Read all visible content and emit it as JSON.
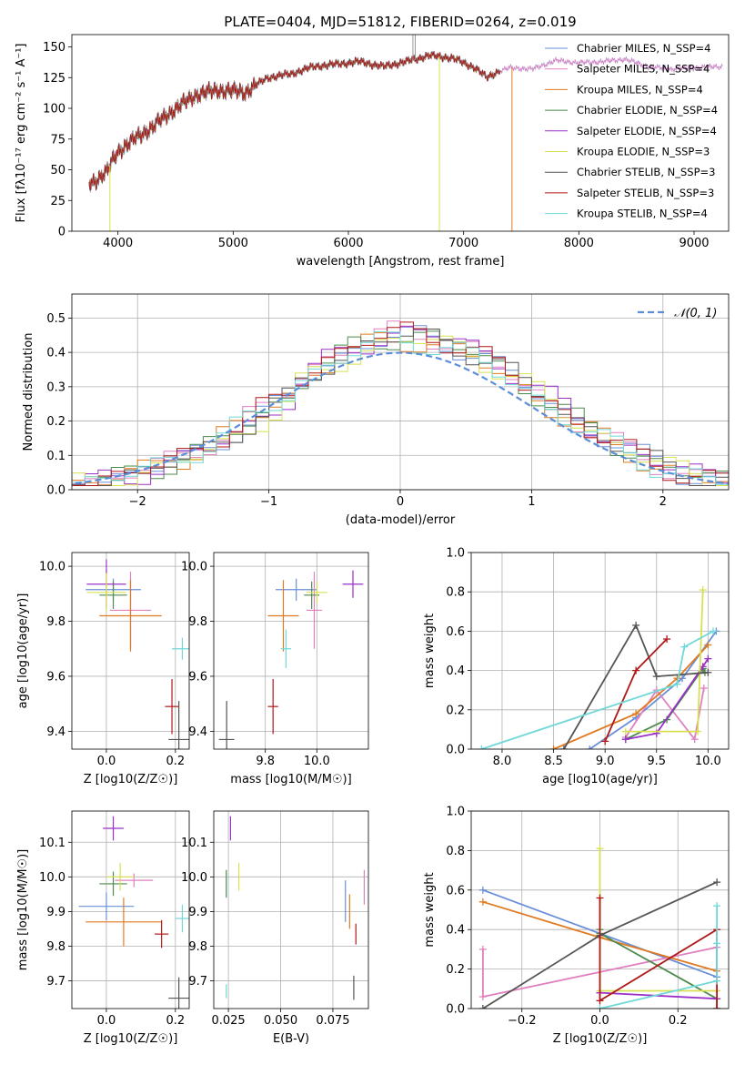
{
  "figure": {
    "title": "PLATE=0404, MJD=51812, FIBERID=0264, z=0.019"
  },
  "colors": {
    "Chabrier MILES": "#6a8fd8",
    "Salpeter MILES": "#e080c0",
    "Kroupa MILES": "#e07a20",
    "Chabrier ELODIE": "#4d8a4d",
    "Salpeter ELODIE": "#9b30c8",
    "Kroupa ELODIE": "#d8e050",
    "Chabrier STELIB": "#555555",
    "Salpeter STELIB": "#b01818",
    "Kroupa STELIB": "#70d8d8"
  },
  "chart_data": [
    {
      "id": "spectrum",
      "type": "line",
      "title": "PLATE=0404, MJD=51812, FIBERID=0264, z=0.019",
      "xlabel": "wavelength [Angstrom, rest frame]",
      "ylabel": "Flux [fλ10⁻¹⁷ erg cm⁻² s⁻¹ A⁻¹]",
      "xlim": [
        3600,
        9300
      ],
      "ylim": [
        0,
        160
      ],
      "xticks": [
        4000,
        5000,
        6000,
        7000,
        8000,
        9000
      ],
      "yticks": [
        0,
        25,
        50,
        75,
        100,
        125,
        150
      ],
      "legend_placement": "top-right",
      "legend": [
        "Chabrier MILES, N_SSP=4",
        "Salpeter MILES, N_SSP=4",
        "Kroupa MILES, N_SSP=4",
        "Chabrier ELODIE, N_SSP=4",
        "Salpeter ELODIE, N_SSP=4",
        "Kroupa ELODIE, N_SSP=3",
        "Chabrier STELIB, N_SSP=3",
        "Salpeter STELIB, N_SSP=3",
        "Kroupa STELIB, N_SSP=4"
      ],
      "continuum": {
        "x": [
          3750,
          3900,
          4000,
          4100,
          4300,
          4500,
          4700,
          4900,
          5100,
          5300,
          5500,
          5700,
          5900,
          6100,
          6300,
          6500,
          6700,
          6900,
          7100,
          7200,
          7300,
          7400,
          7600,
          7800,
          8000,
          8200,
          8400,
          8600,
          8800,
          9000,
          9200
        ],
        "y": [
          38,
          48,
          65,
          72,
          85,
          100,
          112,
          115,
          113,
          125,
          128,
          134,
          136,
          138,
          134,
          138,
          143,
          141,
          133,
          125,
          130,
          133,
          132,
          139,
          137,
          138,
          140,
          134,
          132,
          133,
          134
        ]
      },
      "dips": [
        {
          "x": 3930,
          "y": 0,
          "series": "Kroupa ELODIE"
        },
        {
          "x": 6790,
          "y": 0,
          "series": "Kroupa ELODIE"
        },
        {
          "x": 7420,
          "y": 0,
          "series": "Kroupa MILES"
        }
      ],
      "spike": {
        "x": 6560,
        "y": 160
      }
    },
    {
      "id": "residuals",
      "type": "histogram",
      "xlabel": "(data-model)/error",
      "ylabel": "Normed distribution",
      "xlim": [
        -2.5,
        2.5
      ],
      "ylim": [
        0,
        0.57
      ],
      "xticks": [
        -2,
        -1,
        0,
        1,
        2
      ],
      "yticks": [
        0,
        0.1,
        0.2,
        0.3,
        0.4,
        0.5
      ],
      "grid": true,
      "legend_placement": "top-right",
      "legend": [
        "𝒩(0, 1)"
      ],
      "reference_curve": "normal pdf, mean 0, sigma 1",
      "bin_width": 0.1
    },
    {
      "id": "age_vs_Z",
      "type": "scatter",
      "xlabel": "Z [log10(Z/Z☉)]",
      "ylabel": "age  [log10(age/yr)]",
      "xlim": [
        -0.1,
        0.24
      ],
      "ylim": [
        9.335,
        10.05
      ],
      "xticks": [
        0.0,
        0.2
      ],
      "yticks": [
        9.4,
        9.6,
        9.8,
        10.0
      ],
      "grid": true,
      "points": [
        {
          "series": "Chabrier MILES",
          "x": 0.02,
          "y": 9.915,
          "xerr": 0.08,
          "yerr": 0.04
        },
        {
          "series": "Salpeter MILES",
          "x": 0.07,
          "y": 9.84,
          "xerr": 0.06,
          "yerr": 0.14
        },
        {
          "series": "Kroupa MILES",
          "x": 0.07,
          "y": 9.82,
          "xerr": 0.09,
          "yerr": 0.13
        },
        {
          "series": "Chabrier ELODIE",
          "x": 0.02,
          "y": 9.895,
          "xerr": 0.04,
          "yerr": 0.05
        },
        {
          "series": "Salpeter ELODIE",
          "x": 0.0,
          "y": 9.935,
          "xerr": 0.057,
          "yerr": 0.09
        },
        {
          "series": "Kroupa ELODIE",
          "x": 0.0,
          "y": 9.905,
          "xerr": 0.057,
          "yerr": 0.07
        },
        {
          "series": "Chabrier STELIB",
          "x": 0.21,
          "y": 9.37,
          "xerr": 0.03,
          "yerr": 0.14
        },
        {
          "series": "Salpeter STELIB",
          "x": 0.19,
          "y": 9.49,
          "xerr": 0.02,
          "yerr": 0.1
        },
        {
          "series": "Kroupa STELIB",
          "x": 0.22,
          "y": 9.7,
          "xerr": 0.03,
          "yerr": 0.04
        }
      ]
    },
    {
      "id": "age_vs_mass",
      "type": "scatter",
      "xlabel": "mass [log10(M/M☉)]",
      "ylabel": "",
      "xlim": [
        9.6,
        10.2
      ],
      "ylim": [
        9.335,
        10.05
      ],
      "xticks": [
        9.8,
        10.0
      ],
      "yticks": [
        9.4,
        9.6,
        9.8,
        10.0
      ],
      "grid": true,
      "points": [
        {
          "series": "Chabrier MILES",
          "x": 9.92,
          "y": 9.915,
          "xerr": 0.08,
          "yerr": 0.04
        },
        {
          "series": "Salpeter MILES",
          "x": 9.99,
          "y": 9.84,
          "xerr": 0.03,
          "yerr": 0.14
        },
        {
          "series": "Kroupa MILES",
          "x": 9.87,
          "y": 9.82,
          "xerr": 0.06,
          "yerr": 0.13
        },
        {
          "series": "Chabrier ELODIE",
          "x": 9.98,
          "y": 9.895,
          "xerr": 0.03,
          "yerr": 0.05
        },
        {
          "series": "Salpeter ELODIE",
          "x": 10.14,
          "y": 9.935,
          "xerr": 0.04,
          "yerr": 0.05
        },
        {
          "series": "Kroupa ELODIE",
          "x": 10.0,
          "y": 9.905,
          "xerr": 0.04,
          "yerr": 0.04
        },
        {
          "series": "Chabrier STELIB",
          "x": 9.65,
          "y": 9.37,
          "xerr": 0.03,
          "yerr": 0.14
        },
        {
          "series": "Salpeter STELIB",
          "x": 9.83,
          "y": 9.49,
          "xerr": 0.02,
          "yerr": 0.1
        },
        {
          "series": "Kroupa STELIB",
          "x": 9.88,
          "y": 9.7,
          "xerr": 0.02,
          "yerr": 0.07
        }
      ]
    },
    {
      "id": "mass_weight_vs_age",
      "type": "line",
      "xlabel": "age  [log10(age/yr)]",
      "ylabel": "mass weight",
      "xlim": [
        7.7,
        10.2
      ],
      "ylim": [
        0,
        1.0
      ],
      "xticks": [
        8.0,
        8.5,
        9.0,
        9.5,
        10.0
      ],
      "yticks": [
        0.0,
        0.2,
        0.4,
        0.6,
        0.8,
        1.0
      ],
      "grid": true,
      "series": [
        {
          "name": "Chabrier MILES",
          "x": [
            8.85,
            9.3,
            9.75,
            10.08
          ],
          "y": [
            0.0,
            0.16,
            0.36,
            0.6
          ]
        },
        {
          "name": "Salpeter MILES",
          "x": [
            9.2,
            9.5,
            9.87,
            9.96
          ],
          "y": [
            0.06,
            0.3,
            0.05,
            0.31
          ]
        },
        {
          "name": "Kroupa MILES",
          "x": [
            8.5,
            9.3,
            9.7,
            10.0
          ],
          "y": [
            0.0,
            0.18,
            0.36,
            0.53
          ]
        },
        {
          "name": "Chabrier ELODIE",
          "x": [
            9.2,
            9.6,
            9.95,
            9.97
          ],
          "y": [
            0.05,
            0.15,
            0.41,
            0.39
          ]
        },
        {
          "name": "Salpeter ELODIE",
          "x": [
            9.2,
            9.5,
            9.95,
            10.0
          ],
          "y": [
            0.05,
            0.08,
            0.42,
            0.46
          ]
        },
        {
          "name": "Kroupa ELODIE",
          "x": [
            9.2,
            9.9,
            9.95
          ],
          "y": [
            0.09,
            0.09,
            0.81
          ]
        },
        {
          "name": "Chabrier STELIB",
          "x": [
            8.6,
            9.3,
            9.5,
            10.0
          ],
          "y": [
            0.0,
            0.63,
            0.37,
            0.39
          ]
        },
        {
          "name": "Salpeter STELIB",
          "x": [
            9.0,
            9.3,
            9.6
          ],
          "y": [
            0.04,
            0.4,
            0.56
          ]
        },
        {
          "name": "Kroupa STELIB",
          "x": [
            7.8,
            9.7,
            9.77,
            10.05
          ],
          "y": [
            0.0,
            0.33,
            0.52,
            0.6
          ]
        }
      ]
    },
    {
      "id": "mass_vs_Z",
      "type": "scatter",
      "xlabel": "Z [log10(Z/Z☉)]",
      "ylabel": "mass [log10(M/M☉)]",
      "xlim": [
        -0.1,
        0.24
      ],
      "ylim": [
        9.62,
        10.19
      ],
      "xticks": [
        0.0,
        0.2
      ],
      "yticks": [
        9.7,
        9.8,
        9.9,
        10.0,
        10.1
      ],
      "grid": true,
      "points": [
        {
          "series": "Chabrier MILES",
          "x": 0.0,
          "y": 9.915,
          "xerr": 0.08,
          "yerr": 0.04
        },
        {
          "series": "Salpeter MILES",
          "x": 0.08,
          "y": 9.99,
          "xerr": 0.055,
          "yerr": 0.02
        },
        {
          "series": "Kroupa MILES",
          "x": 0.05,
          "y": 9.87,
          "xerr": 0.11,
          "yerr": 0.07
        },
        {
          "series": "Chabrier ELODIE",
          "x": 0.02,
          "y": 9.98,
          "xerr": 0.04,
          "yerr": 0.035
        },
        {
          "series": "Salpeter ELODIE",
          "x": 0.02,
          "y": 10.14,
          "xerr": 0.03,
          "yerr": 0.035
        },
        {
          "series": "Kroupa ELODIE",
          "x": 0.04,
          "y": 10.0,
          "xerr": 0.04,
          "yerr": 0.04
        },
        {
          "series": "Chabrier STELIB",
          "x": 0.21,
          "y": 9.65,
          "xerr": 0.03,
          "yerr": 0.06
        },
        {
          "series": "Salpeter STELIB",
          "x": 0.16,
          "y": 9.835,
          "xerr": 0.02,
          "yerr": 0.04
        },
        {
          "series": "Kroupa STELIB",
          "x": 0.22,
          "y": 9.88,
          "xerr": 0.02,
          "yerr": 0.04
        }
      ]
    },
    {
      "id": "mass_vs_ebv",
      "type": "scatter",
      "xlabel": "E(B-V)",
      "ylabel": "",
      "xlim": [
        0.018,
        0.092
      ],
      "ylim": [
        9.62,
        10.19
      ],
      "xticks": [
        0.025,
        0.05,
        0.075
      ],
      "xtick_labels": [
        "0.025",
        "0.050",
        "0.075"
      ],
      "yticks": [
        9.7,
        9.8,
        9.9,
        10.0,
        10.1
      ],
      "grid": true,
      "points": [
        {
          "series": "Chabrier MILES",
          "x": 0.081,
          "y": 9.93,
          "yerr": 0.06
        },
        {
          "series": "Salpeter MILES",
          "x": 0.09,
          "y": 9.97,
          "yerr": 0.05
        },
        {
          "series": "Kroupa MILES",
          "x": 0.083,
          "y": 9.9,
          "yerr": 0.05
        },
        {
          "series": "Chabrier ELODIE",
          "x": 0.024,
          "y": 9.98,
          "yerr": 0.04
        },
        {
          "series": "Salpeter ELODIE",
          "x": 0.026,
          "y": 10.14,
          "yerr": 0.035
        },
        {
          "series": "Kroupa ELODIE",
          "x": 0.03,
          "y": 10.0,
          "yerr": 0.04
        },
        {
          "series": "Chabrier STELIB",
          "x": 0.085,
          "y": 9.68,
          "yerr": 0.035
        },
        {
          "series": "Salpeter STELIB",
          "x": 0.086,
          "y": 9.835,
          "yerr": 0.03
        },
        {
          "series": "Kroupa STELIB",
          "x": 0.024,
          "y": 9.67,
          "yerr": 0.02
        }
      ]
    },
    {
      "id": "mass_weight_vs_Z",
      "type": "line",
      "xlabel": "Z [log10(Z/Z☉)]",
      "ylabel": "mass weight",
      "xlim": [
        -0.33,
        0.33
      ],
      "ylim": [
        0,
        1.0
      ],
      "xticks": [
        -0.2,
        0.0,
        0.2
      ],
      "yticks": [
        0.0,
        0.2,
        0.4,
        0.6,
        0.8,
        1.0
      ],
      "grid": true,
      "series": [
        {
          "name": "Chabrier MILES",
          "x": [
            -0.3,
            0.0,
            0.3
          ],
          "y": [
            0.6,
            0.38,
            0.16
          ]
        },
        {
          "name": "Salpeter MILES",
          "x": [
            -0.3,
            -0.3,
            0.3
          ],
          "y": [
            0.3,
            0.06,
            0.31
          ]
        },
        {
          "name": "Kroupa MILES",
          "x": [
            -0.3,
            0.0,
            0.3
          ],
          "y": [
            0.54,
            0.36,
            0.19
          ]
        },
        {
          "name": "Chabrier ELODIE",
          "x": [
            0.0,
            0.0,
            0.3,
            0.3
          ],
          "y": [
            0.4,
            0.38,
            0.05,
            0.0
          ]
        },
        {
          "name": "Salpeter ELODIE",
          "x": [
            0.0,
            0.0,
            0.3
          ],
          "y": [
            0.08,
            0.08,
            0.05
          ]
        },
        {
          "name": "Kroupa ELODIE",
          "x": [
            0.0,
            0.0,
            0.3,
            0.3
          ],
          "y": [
            0.81,
            0.09,
            0.09,
            0.09
          ]
        },
        {
          "name": "Chabrier STELIB",
          "x": [
            -0.3,
            0.0,
            0.3
          ],
          "y": [
            0.0,
            0.37,
            0.64
          ]
        },
        {
          "name": "Salpeter STELIB",
          "x": [
            0.0,
            0.0,
            0.3,
            0.3
          ],
          "y": [
            0.56,
            0.04,
            0.4,
            0.0
          ]
        },
        {
          "name": "Kroupa STELIB",
          "x": [
            0.0,
            0.3,
            0.3,
            0.3
          ],
          "y": [
            0.0,
            0.14,
            0.52,
            0.33
          ]
        }
      ]
    }
  ]
}
